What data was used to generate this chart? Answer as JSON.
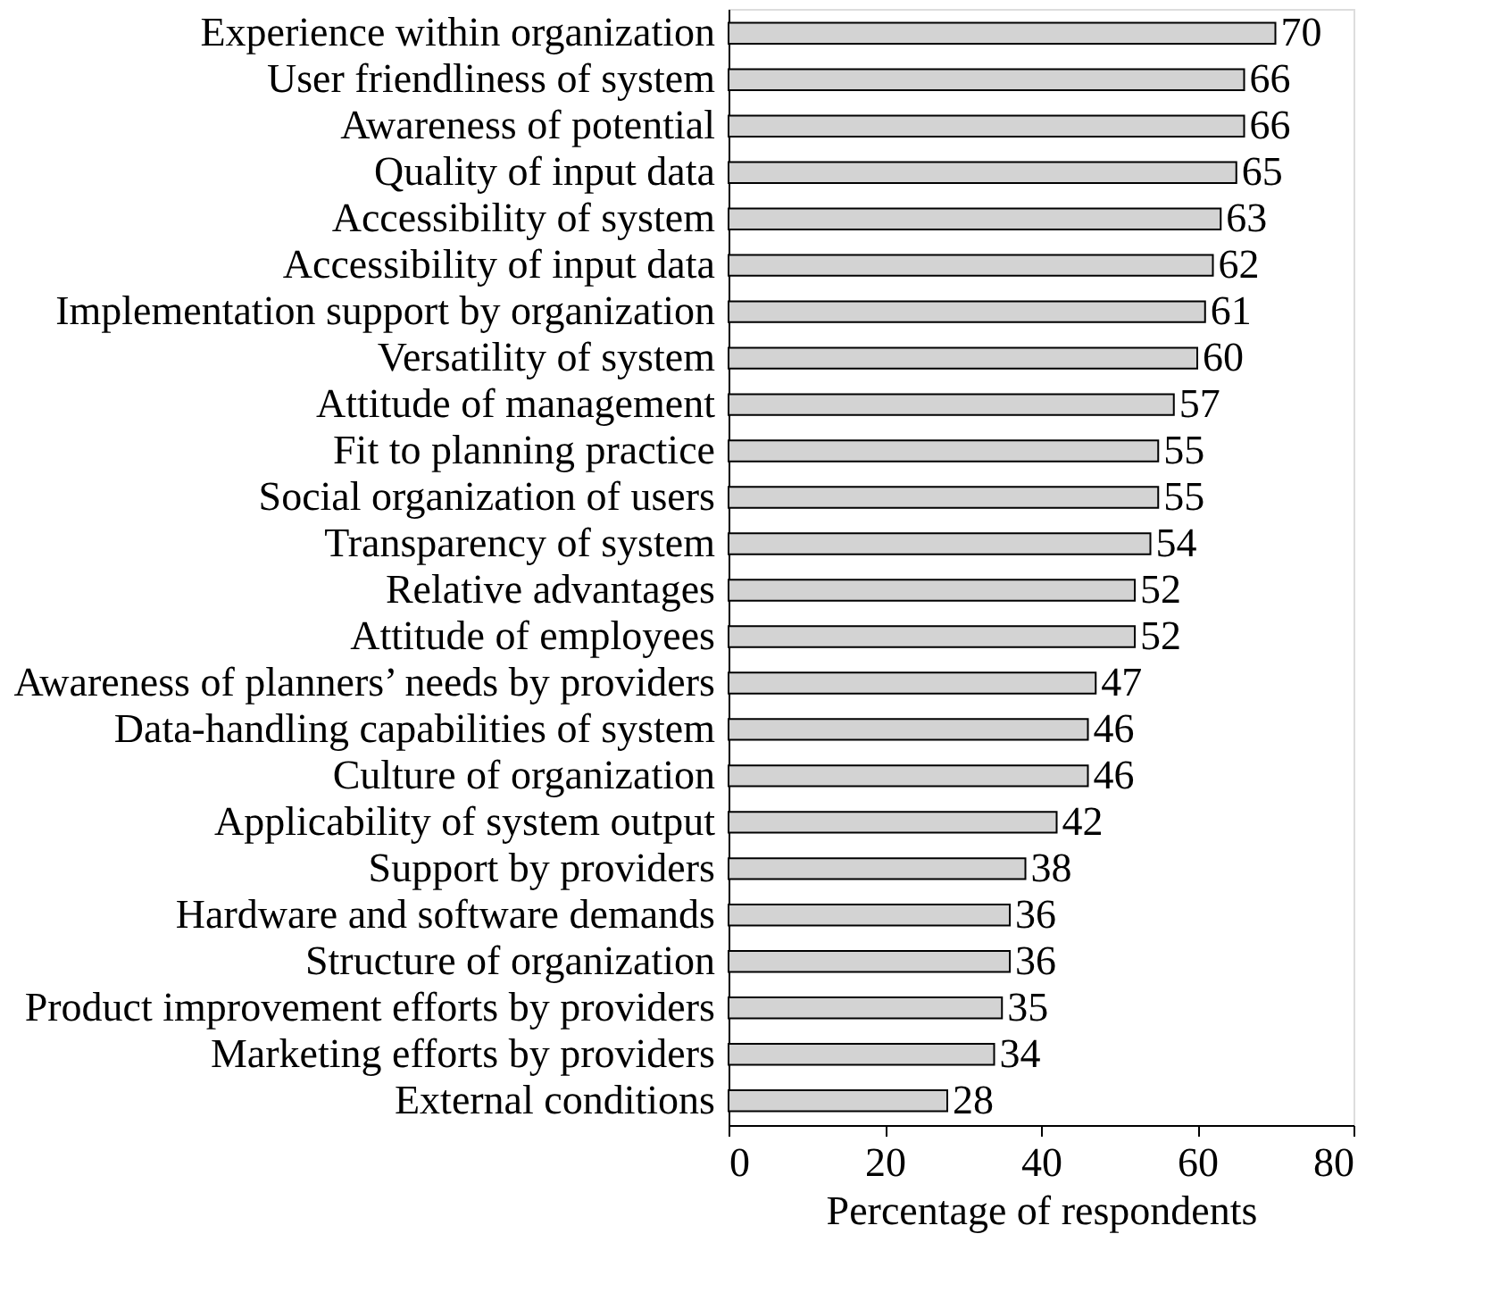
{
  "chart_data": {
    "type": "bar",
    "orientation": "horizontal",
    "xlabel": "Percentage of respondents",
    "categories": [
      "Experience within organization",
      "User friendliness of system",
      "Awareness of potential",
      "Quality of input data",
      "Accessibility of system",
      "Accessibility of input data",
      "Implementation support by organization",
      "Versatility of system",
      "Attitude of management",
      "Fit to planning practice",
      "Social organization of users",
      "Transparency of system",
      "Relative advantages",
      "Attitude of employees",
      "Awareness of planners’ needs by providers",
      "Data-handling capabilities of system",
      "Culture of organization",
      "Applicability of system output",
      "Support by providers",
      "Hardware and software demands",
      "Structure of organization",
      "Product improvement efforts by providers",
      "Marketing efforts by providers",
      "External conditions"
    ],
    "values": [
      70,
      66,
      66,
      65,
      63,
      62,
      61,
      60,
      57,
      55,
      55,
      54,
      52,
      52,
      47,
      46,
      46,
      42,
      38,
      36,
      36,
      35,
      34,
      28
    ],
    "color": "#d3d3d3",
    "xlim": [
      0,
      80
    ],
    "xticks": [
      0,
      20,
      40,
      60,
      80
    ],
    "grid": false,
    "data_labels": true
  }
}
